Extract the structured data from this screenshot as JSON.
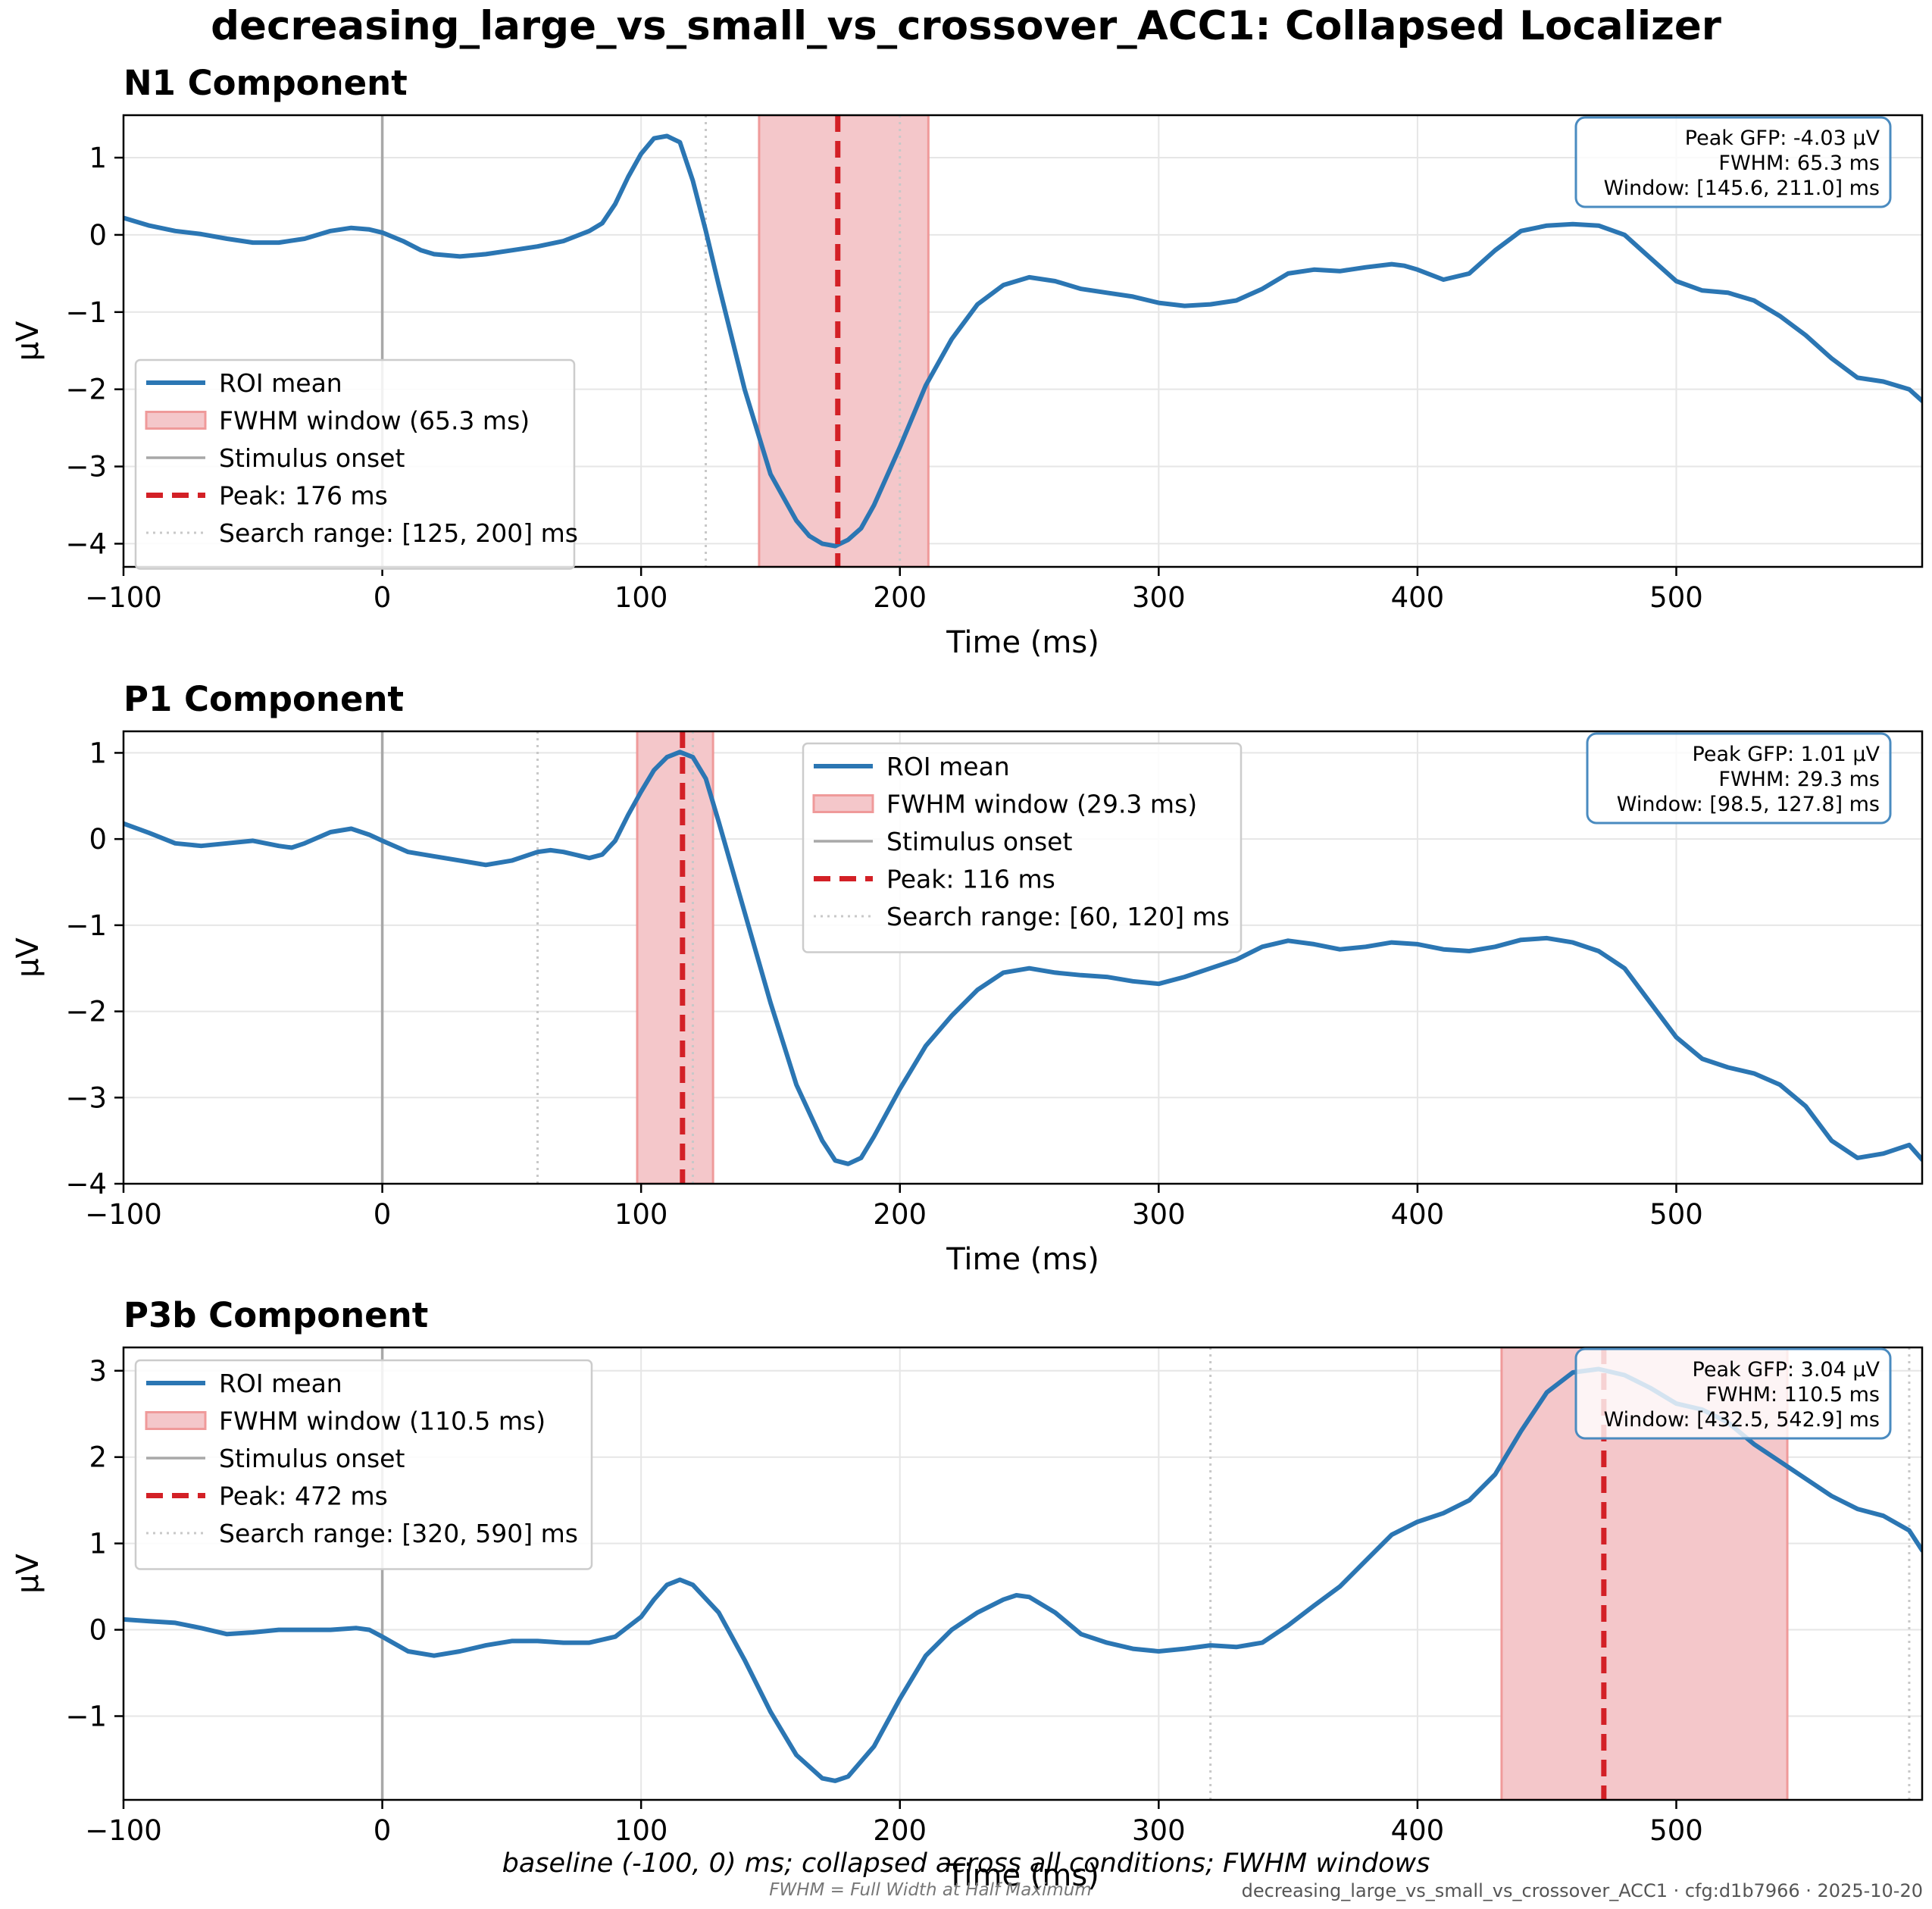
{
  "title": "decreasing_large_vs_small_vs_crossover_ACC1: Collapsed Localizer",
  "colors": {
    "roi_line": "#2b76b3",
    "fwhm_fill": "#f4c7ca",
    "fwhm_edge": "#ef9a9a",
    "peak_line": "#d32026",
    "onset_line": "#a8a8a8",
    "search_line": "#c8c8c8",
    "grid": "#e6e6e6",
    "info_border": "#4a8bc0"
  },
  "chart_data": [
    {
      "type": "line",
      "title": "N1 Component",
      "xlabel": "Time (ms)",
      "ylabel": "µV",
      "xlim": [
        -100,
        595
      ],
      "ylim": [
        -4.3,
        1.55
      ],
      "xticks": [
        -100,
        0,
        100,
        200,
        300,
        400,
        500
      ],
      "yticks": [
        -4,
        -3,
        -2,
        -1,
        0,
        1
      ],
      "grid": true,
      "legend_position": "lower-left",
      "series": [
        {
          "name": "ROI mean",
          "x": [
            -100,
            -90,
            -80,
            -70,
            -60,
            -50,
            -40,
            -30,
            -20,
            -12,
            -5,
            0,
            8,
            15,
            20,
            30,
            40,
            50,
            60,
            70,
            80,
            85,
            90,
            95,
            100,
            105,
            110,
            115,
            120,
            125,
            130,
            140,
            150,
            160,
            165,
            170,
            175,
            180,
            185,
            190,
            200,
            210,
            220,
            230,
            240,
            250,
            260,
            270,
            280,
            290,
            300,
            310,
            320,
            330,
            340,
            350,
            360,
            370,
            380,
            390,
            395,
            400,
            410,
            420,
            430,
            440,
            450,
            460,
            470,
            480,
            490,
            500,
            510,
            520,
            530,
            540,
            550,
            560,
            570,
            580,
            590,
            595
          ],
          "y": [
            0.22,
            0.12,
            0.05,
            0.01,
            -0.05,
            -0.1,
            -0.1,
            -0.05,
            0.05,
            0.09,
            0.07,
            0.03,
            -0.08,
            -0.2,
            -0.25,
            -0.28,
            -0.25,
            -0.2,
            -0.15,
            -0.08,
            0.05,
            0.15,
            0.4,
            0.75,
            1.05,
            1.25,
            1.28,
            1.2,
            0.7,
            0.05,
            -0.65,
            -2.0,
            -3.1,
            -3.7,
            -3.9,
            -4.0,
            -4.03,
            -3.95,
            -3.8,
            -3.5,
            -2.75,
            -1.95,
            -1.35,
            -0.9,
            -0.65,
            -0.55,
            -0.6,
            -0.7,
            -0.75,
            -0.8,
            -0.88,
            -0.92,
            -0.9,
            -0.85,
            -0.7,
            -0.5,
            -0.45,
            -0.47,
            -0.42,
            -0.38,
            -0.4,
            -0.45,
            -0.58,
            -0.5,
            -0.2,
            0.05,
            0.12,
            0.14,
            0.12,
            0.0,
            -0.3,
            -0.6,
            -0.72,
            -0.75,
            -0.85,
            -1.05,
            -1.3,
            -1.6,
            -1.85,
            -1.9,
            -2.0,
            -2.15
          ]
        }
      ],
      "fwhm_window": [
        145.6,
        211.0
      ],
      "peak_ms": 176,
      "onset_ms": 0,
      "search_range": [
        125,
        200
      ],
      "legend": [
        "ROI mean",
        "FWHM window (65.3 ms)",
        "Stimulus onset",
        "Peak: 176 ms",
        "Search range: [125, 200] ms"
      ],
      "info": [
        "Peak GFP: -4.03 µV",
        "FWHM: 65.3 ms",
        "Window: [145.6, 211.0] ms"
      ]
    },
    {
      "type": "line",
      "title": "P1 Component",
      "xlabel": "Time (ms)",
      "ylabel": "µV",
      "xlim": [
        -100,
        595
      ],
      "ylim": [
        -4.0,
        1.25
      ],
      "xticks": [
        -100,
        0,
        100,
        200,
        300,
        400,
        500
      ],
      "yticks": [
        -4,
        -3,
        -2,
        -1,
        0,
        1
      ],
      "grid": true,
      "legend_position": "upper-center",
      "series": [
        {
          "name": "ROI mean",
          "x": [
            -100,
            -90,
            -80,
            -70,
            -60,
            -50,
            -40,
            -35,
            -30,
            -20,
            -12,
            -5,
            0,
            10,
            20,
            30,
            40,
            50,
            60,
            65,
            70,
            80,
            85,
            90,
            95,
            100,
            105,
            110,
            115,
            120,
            125,
            130,
            140,
            150,
            160,
            170,
            175,
            180,
            185,
            190,
            200,
            210,
            220,
            230,
            240,
            250,
            260,
            270,
            280,
            290,
            300,
            310,
            320,
            330,
            340,
            350,
            360,
            370,
            380,
            390,
            400,
            410,
            420,
            430,
            440,
            450,
            460,
            470,
            480,
            490,
            500,
            510,
            520,
            530,
            540,
            550,
            560,
            570,
            580,
            590,
            595
          ],
          "y": [
            0.18,
            0.07,
            -0.05,
            -0.08,
            -0.05,
            -0.02,
            -0.08,
            -0.1,
            -0.05,
            0.08,
            0.12,
            0.05,
            -0.02,
            -0.15,
            -0.2,
            -0.25,
            -0.3,
            -0.25,
            -0.15,
            -0.13,
            -0.15,
            -0.22,
            -0.18,
            -0.02,
            0.28,
            0.55,
            0.8,
            0.95,
            1.01,
            0.95,
            0.7,
            0.2,
            -0.85,
            -1.9,
            -2.85,
            -3.5,
            -3.73,
            -3.77,
            -3.7,
            -3.45,
            -2.9,
            -2.4,
            -2.05,
            -1.75,
            -1.55,
            -1.5,
            -1.55,
            -1.58,
            -1.6,
            -1.65,
            -1.68,
            -1.6,
            -1.5,
            -1.4,
            -1.25,
            -1.18,
            -1.22,
            -1.28,
            -1.25,
            -1.2,
            -1.22,
            -1.28,
            -1.3,
            -1.25,
            -1.17,
            -1.15,
            -1.2,
            -1.3,
            -1.5,
            -1.9,
            -2.3,
            -2.55,
            -2.65,
            -2.72,
            -2.85,
            -3.1,
            -3.5,
            -3.7,
            -3.65,
            -3.55,
            -3.72
          ]
        }
      ],
      "fwhm_window": [
        98.5,
        127.8
      ],
      "peak_ms": 116,
      "onset_ms": 0,
      "search_range": [
        60,
        120
      ],
      "legend": [
        "ROI mean",
        "FWHM window (29.3 ms)",
        "Stimulus onset",
        "Peak: 116 ms",
        "Search range: [60, 120] ms"
      ],
      "info": [
        "Peak GFP: 1.01 µV",
        "FWHM: 29.3 ms",
        "Window: [98.5, 127.8] ms"
      ]
    },
    {
      "type": "line",
      "title": "P3b Component",
      "xlabel": "Time (ms)",
      "ylabel": "µV",
      "xlim": [
        -100,
        595
      ],
      "ylim": [
        -1.97,
        3.27
      ],
      "xticks": [
        -100,
        0,
        100,
        200,
        300,
        400,
        500
      ],
      "yticks": [
        -1,
        0,
        1,
        2,
        3
      ],
      "grid": true,
      "legend_position": "upper-left",
      "series": [
        {
          "name": "ROI mean",
          "x": [
            -100,
            -90,
            -80,
            -70,
            -60,
            -50,
            -40,
            -30,
            -20,
            -10,
            -5,
            0,
            10,
            20,
            30,
            40,
            50,
            60,
            70,
            80,
            90,
            100,
            105,
            110,
            115,
            120,
            130,
            140,
            150,
            160,
            170,
            175,
            180,
            190,
            200,
            210,
            220,
            230,
            240,
            245,
            250,
            260,
            270,
            280,
            290,
            300,
            310,
            320,
            330,
            340,
            350,
            360,
            370,
            380,
            390,
            400,
            410,
            420,
            430,
            440,
            450,
            460,
            470,
            480,
            490,
            500,
            510,
            520,
            530,
            540,
            550,
            560,
            570,
            580,
            590,
            595
          ],
          "y": [
            0.12,
            0.1,
            0.08,
            0.02,
            -0.05,
            -0.03,
            0.0,
            0.0,
            0.0,
            0.02,
            0.0,
            -0.08,
            -0.25,
            -0.3,
            -0.25,
            -0.18,
            -0.13,
            -0.13,
            -0.15,
            -0.15,
            -0.08,
            0.15,
            0.35,
            0.52,
            0.58,
            0.52,
            0.2,
            -0.35,
            -0.95,
            -1.45,
            -1.72,
            -1.75,
            -1.7,
            -1.35,
            -0.8,
            -0.3,
            0.0,
            0.2,
            0.35,
            0.4,
            0.38,
            0.2,
            -0.05,
            -0.15,
            -0.22,
            -0.25,
            -0.22,
            -0.18,
            -0.2,
            -0.15,
            0.05,
            0.28,
            0.5,
            0.8,
            1.1,
            1.25,
            1.35,
            1.5,
            1.8,
            2.3,
            2.75,
            2.98,
            3.02,
            2.95,
            2.8,
            2.62,
            2.55,
            2.4,
            2.15,
            1.95,
            1.75,
            1.55,
            1.4,
            1.32,
            1.15,
            0.92
          ]
        }
      ],
      "fwhm_window": [
        432.5,
        542.9
      ],
      "peak_ms": 472,
      "onset_ms": 0,
      "search_range": [
        320,
        590
      ],
      "legend": [
        "ROI mean",
        "FWHM window (110.5 ms)",
        "Stimulus onset",
        "Peak: 472 ms",
        "Search range: [320, 590] ms"
      ],
      "info": [
        "Peak GFP: 3.04 µV",
        "FWHM: 110.5 ms",
        "Window: [432.5, 542.9] ms"
      ]
    }
  ],
  "footer": {
    "caption": "baseline (-100, 0) ms; collapsed across all conditions; FWHM windows",
    "note": "FWHM = Full Width at Half Maximum",
    "stamp": "decreasing_large_vs_small_vs_crossover_ACC1 · cfg:d1b7966 · 2025-10-20"
  }
}
